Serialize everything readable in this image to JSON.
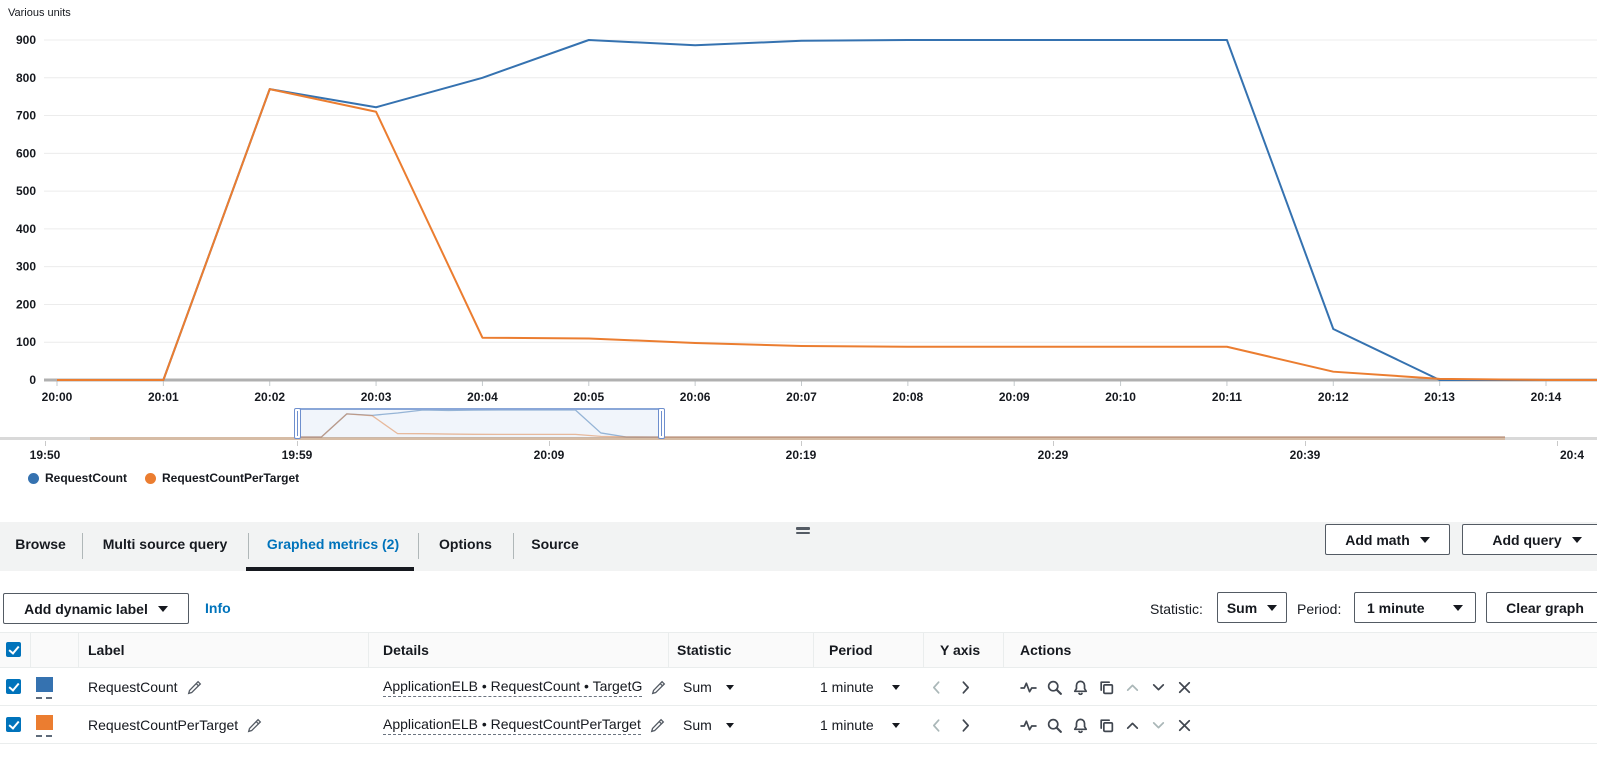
{
  "chart_data": {
    "type": "line",
    "title": "",
    "ylabel": "Various units",
    "xlabel": "",
    "x": [
      "20:00",
      "20:01",
      "20:02",
      "20:03",
      "20:04",
      "20:05",
      "20:06",
      "20:07",
      "20:08",
      "20:09",
      "20:10",
      "20:11",
      "20:12",
      "20:13",
      "20:14"
    ],
    "series": [
      {
        "name": "RequestCount",
        "color": "#3572b0",
        "values": [
          0,
          0,
          770,
          722,
          800,
          900,
          886,
          898,
          900,
          900,
          900,
          900,
          135,
          0,
          0
        ]
      },
      {
        "name": "RequestCountPerTarget",
        "color": "#eb7d30",
        "values": [
          0,
          0,
          770,
          710,
          112,
          110,
          98,
          90,
          88,
          88,
          88,
          88,
          22,
          3,
          0
        ]
      }
    ],
    "ylim": [
      0,
      900
    ],
    "yticks": [
      0,
      100,
      200,
      300,
      400,
      500,
      600,
      700,
      800,
      900
    ],
    "grid": true,
    "legend_position": "bottom-left",
    "overview_axis_labels": [
      "19:50",
      "19:59",
      "20:09",
      "20:19",
      "20:29",
      "20:39",
      "20:4"
    ]
  },
  "chart": {
    "y_axis_title": "Various units"
  },
  "legend": {
    "items": [
      {
        "label": "RequestCount",
        "color": "#3572b0"
      },
      {
        "label": "RequestCountPerTarget",
        "color": "#eb7d30"
      }
    ]
  },
  "panel": {
    "tabs": [
      {
        "label": "Browse",
        "active": false
      },
      {
        "label": "Multi source query",
        "active": false
      },
      {
        "label": "Graphed metrics (2)",
        "active": true
      },
      {
        "label": "Options",
        "active": false
      },
      {
        "label": "Source",
        "active": false
      }
    ],
    "add_math_label": "Add math",
    "add_query_label": "Add query",
    "toolbar": {
      "add_dynamic_label": "Add dynamic label",
      "info_label": "Info",
      "statistic_label": "Statistic:",
      "statistic_value": "Sum",
      "period_label": "Period:",
      "period_value": "1 minute",
      "clear_graph_label": "Clear graph"
    },
    "table": {
      "columns": [
        "Label",
        "Details",
        "Statistic",
        "Period",
        "Y axis",
        "Actions"
      ],
      "rows": [
        {
          "checked": true,
          "color": "#3572b0",
          "label": "RequestCount",
          "details": "ApplicationELB • RequestCount • TargetG",
          "statistic": "Sum",
          "period": "1 minute"
        },
        {
          "checked": true,
          "color": "#eb7d30",
          "label": "RequestCountPerTarget",
          "details": "ApplicationELB • RequestCountPerTarget",
          "statistic": "Sum",
          "period": "1 minute"
        }
      ]
    }
  }
}
